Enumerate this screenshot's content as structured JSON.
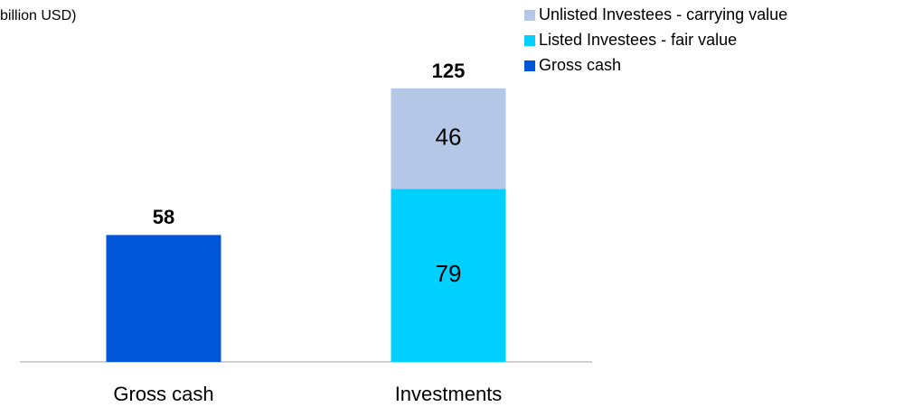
{
  "chart_data": {
    "type": "stacked_bar",
    "title": "billion USD)",
    "categories": [
      "Gross cash",
      "Investments"
    ],
    "series": [
      {
        "name": "Gross cash",
        "color": "#0055d9",
        "values": [
          58,
          null
        ]
      },
      {
        "name": "Listed Investees - fair value",
        "color": "#00d0ff",
        "values": [
          null,
          79
        ]
      },
      {
        "name": "Unlisted Investees - carrying value",
        "color": "#b4c7e7",
        "values": [
          null,
          46
        ]
      }
    ],
    "totals": [
      58,
      125
    ],
    "ylim": [
      0,
      125
    ],
    "legend": "top-right"
  }
}
